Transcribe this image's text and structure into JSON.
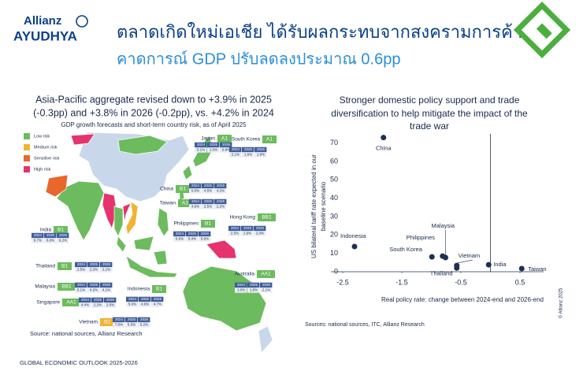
{
  "header": {
    "brand_top": "Allianz",
    "brand_bottom": "AYUDHYA",
    "title_line1": "ตลาดเกิดใหม่เอเชีย ได้รับผลกระทบจากสงครามการค้า",
    "title_line2": "คาดการณ์ GDP ปรับลดลงประมาณ 0.6pp"
  },
  "map": {
    "title_lines": [
      "Asia-Pacific aggregate revised down to +3.9% in 2025",
      "(-0.3pp) and +3.8% in 2026 (-0.2pp), vs. +4.2% in 2024"
    ],
    "subtitle": "GDP growth forecasts and short-term country risk, as of April 2025",
    "legend": [
      {
        "label": "Low risk",
        "color": "#6dbb5f"
      },
      {
        "label": "Medium risk",
        "color": "#f2b233"
      },
      {
        "label": "Sensitive risk",
        "color": "#e8672c"
      },
      {
        "label": "High risk",
        "color": "#e5336d"
      }
    ],
    "years": [
      "2024",
      "2025",
      "2026"
    ],
    "countries": [
      {
        "name": "Japan",
        "rating": "A1",
        "color": "#6dbb5f",
        "values": [
          "0.1%",
          "1.0%",
          "0.8%"
        ]
      },
      {
        "name": "South Korea",
        "rating": "A1",
        "color": "#6dbb5f",
        "values": [
          "2.1%",
          "1.6%",
          "1.9%"
        ]
      },
      {
        "name": "China",
        "rating": "B1",
        "color": "#6dbb5f",
        "values": [
          "5.0%",
          "4.5%",
          "4.2%"
        ]
      },
      {
        "name": "Taiwan",
        "rating": "A1",
        "color": "#6dbb5f",
        "values": [
          "4.6%",
          "2.5%",
          "2.2%"
        ]
      },
      {
        "name": "Hong Kong",
        "rating": "BB1",
        "color": "#6dbb5f",
        "values": [
          "2.5%",
          "1.9%",
          "2.0%"
        ]
      },
      {
        "name": "Philippines",
        "rating": "B1",
        "color": "#6dbb5f",
        "values": [
          "5.6%",
          "5.4%",
          "5.6%"
        ]
      },
      {
        "name": "India",
        "rating": "B1",
        "color": "#6dbb5f",
        "values": [
          "6.7%",
          "6.0%",
          "6.2%"
        ]
      },
      {
        "name": "Thailand",
        "rating": "B1",
        "color": "#6dbb5f",
        "values": [
          "2.5%",
          "2.2%",
          "2.1%"
        ]
      },
      {
        "name": "Malaysia",
        "rating": "BB1",
        "color": "#6dbb5f",
        "values": [
          "5.1%",
          "4.2%",
          "4.1%"
        ]
      },
      {
        "name": "Singapore",
        "rating": "AA1",
        "color": "#6dbb5f",
        "values": [
          "4.4%",
          "2.2%",
          "2.0%"
        ]
      },
      {
        "name": "Indonesia",
        "rating": "B1",
        "color": "#6dbb5f",
        "values": [
          "5.0%",
          "4.6%",
          "4.7%"
        ]
      },
      {
        "name": "Australia",
        "rating": "AA1",
        "color": "#6dbb5f",
        "values": [
          "1.0%",
          "1.8%",
          "2.1%"
        ]
      },
      {
        "name": "Vietnam",
        "rating": "B2",
        "color": "#f2b233",
        "values": [
          "7.0%",
          "6.3%",
          "6.2%"
        ]
      }
    ],
    "source": "Source: national sources, Allianz Research"
  },
  "chart_data": {
    "type": "scatter",
    "title_lines": [
      "Stronger domestic policy support and trade",
      "diversification to help mitigate the impact of the",
      "trade war"
    ],
    "y_label_lines": [
      "US bilateral tariff rate expected  in our",
      "baseline scenario"
    ],
    "x_label": "Real policy rate: change between 2024-end and 2026-end",
    "labels": [
      "China",
      "Indonesia",
      "South Korea",
      "Philippines",
      "Malaysia",
      "Vietnam",
      "Thailand",
      "India",
      "Taiwan"
    ],
    "x": [
      -1.81,
      -2.3,
      -0.99,
      -0.81,
      -0.76,
      -0.57,
      -0.57,
      -0.03,
      0.53
    ],
    "y": [
      73,
      13.7,
      8.1,
      8.5,
      7.7,
      3.4,
      2,
      3.8,
      1.7
    ],
    "color": "#1f3057",
    "xlim": [
      -2.7,
      0.9
    ],
    "ylim": [
      0,
      75
    ],
    "xticks": [
      -2.5,
      -1.5,
      -0.5,
      0.5
    ],
    "yticks": [
      0,
      10,
      20,
      30,
      40,
      50,
      60,
      70
    ],
    "y_axis_at_x": 0,
    "source": "Sources: national sources, ITC, Allianz Research"
  },
  "footer": "GLOBAL ECONOMIC OUTLOOK 2025-2026",
  "copyright": "© Allianz 2025"
}
